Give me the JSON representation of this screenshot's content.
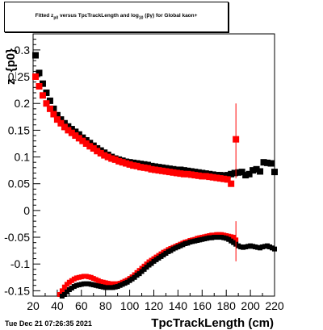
{
  "title": {
    "prefix": "Fitted z",
    "sub1": "p0",
    "mid": " versus TpcTrackLength and log",
    "sub2": "10",
    "suffix": "(βγ) for Global kaon+"
  },
  "timestamp": "Tue Dec 21 07:26:35 2021",
  "chart_data": {
    "type": "scatter",
    "xlabel": "TpcTrackLength (cm)",
    "ylabel": "z_{p0}",
    "xlim": [
      20,
      220
    ],
    "ylim": [
      -0.16,
      0.33
    ],
    "xticks": [
      20,
      40,
      60,
      80,
      100,
      120,
      140,
      160,
      180,
      200,
      220
    ],
    "yticks": [
      -0.15,
      -0.1,
      -0.05,
      0,
      0.05,
      0.1,
      0.15,
      0.2,
      0.25,
      0.3
    ],
    "ytick_labels": [
      "-0.15",
      "-0.1",
      "-0.05",
      "0",
      "0.05",
      "0.1",
      "0.15",
      "0.2",
      "0.25",
      "0.3"
    ],
    "colors": {
      "black": "#000000",
      "red": "#ff0000"
    },
    "series": [
      {
        "color": "black",
        "marker": "square",
        "band": "upper",
        "x": [
          22,
          25,
          28,
          31,
          34,
          37,
          40,
          43,
          46,
          49,
          52,
          55,
          58,
          61,
          64,
          67,
          70,
          73,
          76,
          79,
          82,
          85,
          88,
          91,
          94,
          97,
          100,
          103,
          106,
          109,
          112,
          115,
          118,
          121,
          124,
          127,
          130,
          133,
          136,
          139,
          142,
          145,
          148,
          151,
          154,
          157,
          160,
          163,
          166,
          169,
          172,
          175,
          178,
          181,
          184,
          187,
          190,
          193,
          196,
          199,
          202,
          205,
          208,
          211,
          214,
          217,
          220
        ],
        "y": [
          0.29,
          0.257,
          0.237,
          0.22,
          0.205,
          0.19,
          0.178,
          0.17,
          0.163,
          0.157,
          0.152,
          0.147,
          0.142,
          0.136,
          0.131,
          0.126,
          0.121,
          0.116,
          0.112,
          0.108,
          0.104,
          0.1,
          0.097,
          0.095,
          0.093,
          0.091,
          0.09,
          0.089,
          0.088,
          0.087,
          0.086,
          0.085,
          0.083,
          0.082,
          0.081,
          0.08,
          0.079,
          0.078,
          0.077,
          0.076,
          0.076,
          0.075,
          0.074,
          0.073,
          0.072,
          0.071,
          0.07,
          0.069,
          0.068,
          0.067,
          0.066,
          0.066,
          0.065,
          0.066,
          0.068,
          0.07,
          0.071,
          0.072,
          0.066,
          0.068,
          0.075,
          0.077,
          0.073,
          0.09,
          0.089,
          0.088,
          0.072
        ]
      },
      {
        "color": "red",
        "marker": "square",
        "band": "upper",
        "x": [
          22,
          25,
          28,
          31,
          34,
          37,
          40,
          43,
          46,
          49,
          52,
          55,
          58,
          61,
          64,
          67,
          70,
          73,
          76,
          79,
          82,
          85,
          88,
          91,
          94,
          97,
          100,
          103,
          106,
          109,
          112,
          115,
          118,
          121,
          124,
          127,
          130,
          133,
          136,
          139,
          142,
          145,
          148,
          151,
          154,
          157,
          160,
          163,
          166,
          169,
          172,
          175,
          178,
          181,
          184,
          188
        ],
        "y": [
          0.25,
          0.232,
          0.215,
          0.2,
          0.19,
          0.18,
          0.17,
          0.163,
          0.156,
          0.15,
          0.145,
          0.14,
          0.135,
          0.13,
          0.125,
          0.12,
          0.116,
          0.111,
          0.107,
          0.103,
          0.1,
          0.097,
          0.095,
          0.092,
          0.09,
          0.088,
          0.086,
          0.084,
          0.083,
          0.081,
          0.08,
          0.079,
          0.077,
          0.076,
          0.075,
          0.074,
          0.073,
          0.072,
          0.071,
          0.07,
          0.069,
          0.068,
          0.068,
          0.067,
          0.066,
          0.065,
          0.064,
          0.064,
          0.063,
          0.062,
          0.061,
          0.06,
          0.059,
          0.058,
          0.05,
          0.133
        ],
        "error_x": 188,
        "error_low": 0.06,
        "error_high": 0.2
      },
      {
        "color": "red",
        "marker": "square",
        "band": "lower",
        "x": [
          42,
          44,
          46,
          48,
          50,
          52,
          54,
          56,
          58,
          60,
          62,
          64,
          66,
          68,
          70,
          72,
          74,
          76,
          78,
          80,
          82,
          84,
          86,
          88,
          90,
          92,
          94,
          96,
          98,
          100,
          102,
          104,
          106,
          108,
          110,
          112,
          114,
          116,
          118,
          120,
          122,
          124,
          126,
          128,
          130,
          132,
          134,
          136,
          138,
          140,
          142,
          144,
          146,
          148,
          150,
          152,
          154,
          156,
          158,
          160,
          162,
          164,
          166,
          168,
          170,
          172,
          174,
          176,
          178,
          180,
          182,
          184,
          186,
          188
        ],
        "y": [
          -0.157,
          -0.15,
          -0.143,
          -0.138,
          -0.134,
          -0.131,
          -0.128,
          -0.126,
          -0.125,
          -0.124,
          -0.123,
          -0.123,
          -0.124,
          -0.125,
          -0.127,
          -0.129,
          -0.131,
          -0.133,
          -0.134,
          -0.135,
          -0.136,
          -0.137,
          -0.137,
          -0.137,
          -0.137,
          -0.136,
          -0.134,
          -0.132,
          -0.13,
          -0.127,
          -0.124,
          -0.12,
          -0.116,
          -0.112,
          -0.108,
          -0.104,
          -0.1,
          -0.096,
          -0.093,
          -0.09,
          -0.087,
          -0.084,
          -0.081,
          -0.078,
          -0.076,
          -0.073,
          -0.071,
          -0.069,
          -0.067,
          -0.065,
          -0.063,
          -0.061,
          -0.059,
          -0.058,
          -0.056,
          -0.055,
          -0.054,
          -0.052,
          -0.051,
          -0.05,
          -0.049,
          -0.048,
          -0.047,
          -0.046,
          -0.046,
          -0.045,
          -0.045,
          -0.045,
          -0.046,
          -0.047,
          -0.048,
          -0.049,
          -0.05,
          -0.055
        ],
        "error_x": 188,
        "error_low": -0.095,
        "error_high": -0.02
      },
      {
        "color": "black",
        "marker": "square",
        "band": "lower",
        "x": [
          44,
          46,
          48,
          50,
          52,
          54,
          56,
          58,
          60,
          62,
          64,
          66,
          68,
          70,
          72,
          74,
          76,
          78,
          80,
          82,
          84,
          86,
          88,
          90,
          92,
          94,
          96,
          98,
          100,
          102,
          104,
          106,
          108,
          110,
          112,
          114,
          116,
          118,
          120,
          122,
          124,
          126,
          128,
          130,
          132,
          134,
          136,
          138,
          140,
          142,
          144,
          146,
          148,
          150,
          152,
          154,
          156,
          158,
          160,
          162,
          164,
          166,
          168,
          170,
          172,
          174,
          176,
          178,
          180,
          182,
          184,
          186,
          188,
          190,
          192,
          194,
          196,
          198,
          200,
          202,
          204,
          206,
          208,
          210,
          212,
          214,
          216,
          218,
          220
        ],
        "y": [
          -0.16,
          -0.157,
          -0.152,
          -0.148,
          -0.145,
          -0.142,
          -0.14,
          -0.139,
          -0.138,
          -0.137,
          -0.137,
          -0.137,
          -0.138,
          -0.139,
          -0.14,
          -0.141,
          -0.142,
          -0.143,
          -0.144,
          -0.144,
          -0.144,
          -0.144,
          -0.143,
          -0.142,
          -0.14,
          -0.138,
          -0.136,
          -0.134,
          -0.131,
          -0.128,
          -0.125,
          -0.121,
          -0.118,
          -0.114,
          -0.11,
          -0.106,
          -0.102,
          -0.099,
          -0.095,
          -0.092,
          -0.089,
          -0.086,
          -0.083,
          -0.08,
          -0.077,
          -0.075,
          -0.072,
          -0.07,
          -0.068,
          -0.066,
          -0.064,
          -0.062,
          -0.061,
          -0.059,
          -0.058,
          -0.057,
          -0.056,
          -0.055,
          -0.054,
          -0.053,
          -0.052,
          -0.051,
          -0.051,
          -0.05,
          -0.05,
          -0.05,
          -0.05,
          -0.051,
          -0.052,
          -0.054,
          -0.057,
          -0.06,
          -0.063,
          -0.066,
          -0.068,
          -0.069,
          -0.068,
          -0.067,
          -0.066,
          -0.067,
          -0.068,
          -0.069,
          -0.07,
          -0.068,
          -0.067,
          -0.066,
          -0.068,
          -0.07,
          -0.072
        ]
      }
    ]
  }
}
